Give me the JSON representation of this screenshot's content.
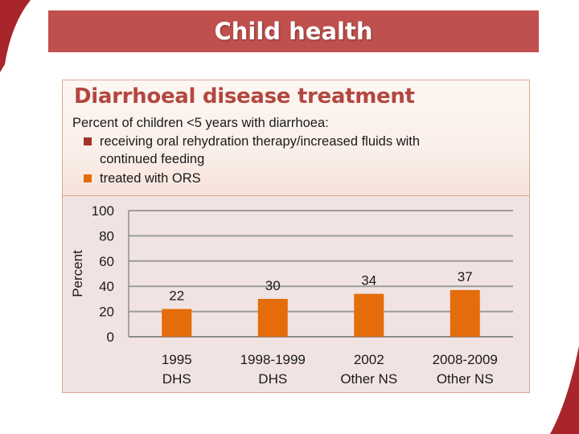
{
  "slide": {
    "title": "Child health"
  },
  "colors": {
    "title_bar": "#c0504d",
    "ort_series": "#a0342c",
    "ors_series": "#e46c0a",
    "chart_title": "#b34740"
  },
  "chart_data": {
    "type": "bar",
    "title": "Diarrhoeal disease treatment",
    "subtitle": "Percent of children <5 years with diarrhoea:",
    "legend": [
      "receiving oral rehydration therapy/increased fluids with continued feeding",
      "treated with ORS"
    ],
    "categories": [
      [
        "1995",
        "DHS"
      ],
      [
        "1998-1999",
        "DHS"
      ],
      [
        "2002",
        "Other NS"
      ],
      [
        "2008-2009",
        "Other NS"
      ]
    ],
    "series": [
      {
        "name": "treated with ORS",
        "values": [
          22,
          30,
          34,
          37
        ]
      }
    ],
    "xlabel": "",
    "ylabel": "Percent",
    "ylim": [
      0,
      100
    ],
    "yticks": [
      "0",
      "20",
      "40",
      "60",
      "80",
      "100"
    ],
    "grid": true
  }
}
